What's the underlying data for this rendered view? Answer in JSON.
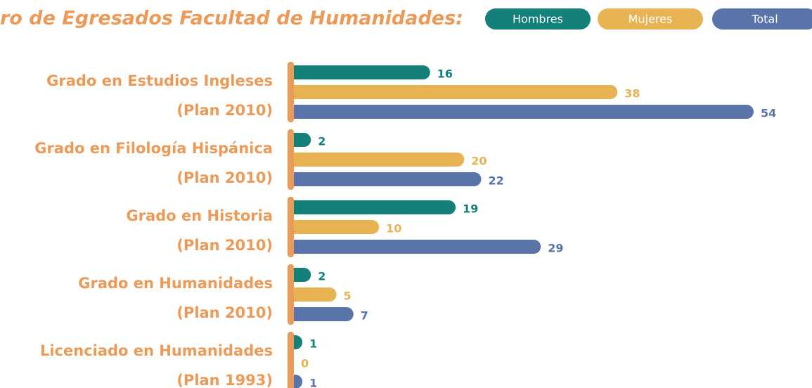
{
  "chart_data": {
    "type": "bar",
    "orientation": "horizontal",
    "title": "ro de Egresados Facultad de Humanidades:",
    "categories": [
      [
        "Grado en Estudios Ingleses",
        "(Plan 2010)"
      ],
      [
        "Grado en Filología Hispánica",
        "(Plan 2010)"
      ],
      [
        "Grado en Historia",
        "(Plan 2010)"
      ],
      [
        "Grado en Humanidades",
        "(Plan 2010)"
      ],
      [
        "Licenciado en Humanidades",
        "(Plan 1993)"
      ]
    ],
    "series": [
      {
        "name": "Hombres",
        "color": "#138079",
        "values": [
          16,
          2,
          19,
          2,
          1
        ]
      },
      {
        "name": "Mujeres",
        "color": "#e8b453",
        "values": [
          38,
          20,
          10,
          5,
          0
        ]
      },
      {
        "name": "Total",
        "color": "#5874a8",
        "values": [
          54,
          22,
          29,
          7,
          1
        ]
      }
    ],
    "legend": "top-right"
  }
}
